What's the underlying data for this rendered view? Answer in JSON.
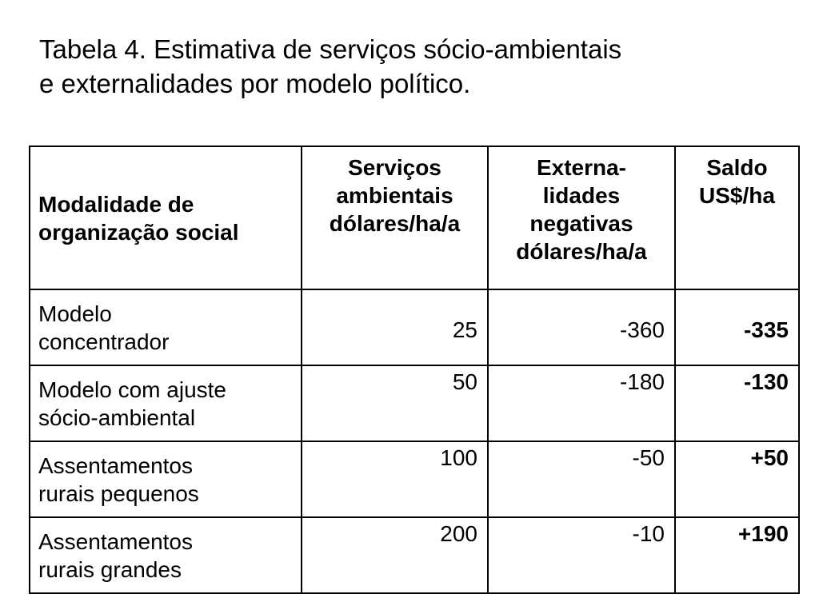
{
  "title": {
    "line1": "Tabela 4. Estimativa de serviços sócio-ambientais",
    "line2": "e externalidades por modelo político."
  },
  "table": {
    "headers": {
      "col1": [
        "Modalidade de",
        "organização social"
      ],
      "col2": [
        "Serviços",
        "ambientais",
        "dólares/ha/a"
      ],
      "col3": [
        "Externa-",
        "lidades",
        "negativas",
        "dólares/ha/a"
      ],
      "col4": [
        "Saldo",
        "US$/ha"
      ]
    },
    "rows": [
      {
        "label": [
          "Modelo",
          "concentrador"
        ],
        "servicos": "25",
        "externalidades": "-360",
        "saldo": "-335"
      },
      {
        "label": [
          "Modelo com ajuste",
          "sócio-ambiental"
        ],
        "servicos": "50",
        "externalidades": "-180",
        "saldo": "-130"
      },
      {
        "label": [
          "Assentamentos",
          "rurais pequenos"
        ],
        "servicos": "100",
        "externalidades": "-50",
        "saldo": "+50"
      },
      {
        "label": [
          "Assentamentos",
          "rurais grandes"
        ],
        "servicos": "200",
        "externalidades": "-10",
        "saldo": "+190"
      }
    ]
  }
}
